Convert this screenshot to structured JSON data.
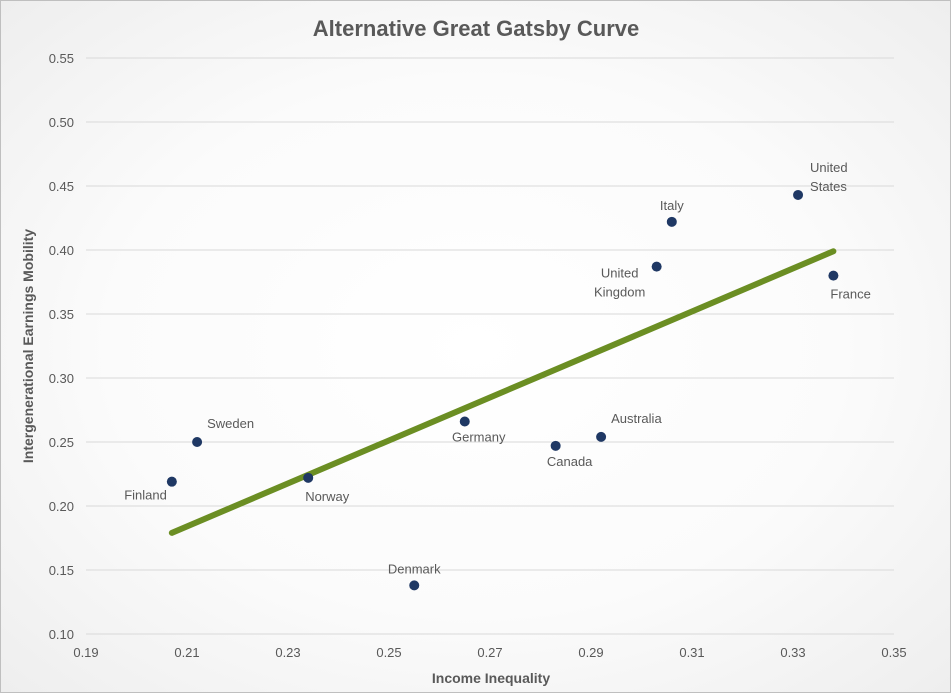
{
  "chart_data": {
    "type": "scatter",
    "title": "Alternative Great Gatsby Curve",
    "xlabel": "Income Inequality",
    "ylabel": "Intergenerational Earnings Mobility",
    "xlim": [
      0.19,
      0.35
    ],
    "ylim": [
      0.1,
      0.55
    ],
    "x_ticks": [
      "0.19",
      "0.21",
      "0.23",
      "0.25",
      "0.27",
      "0.29",
      "0.31",
      "0.33",
      "0.35"
    ],
    "y_ticks": [
      "0.10",
      "0.15",
      "0.20",
      "0.25",
      "0.30",
      "0.35",
      "0.40",
      "0.45",
      "0.50",
      "0.55"
    ],
    "grid": true,
    "legend": "none",
    "point_color": "#1f3864",
    "trend_color": "#6b8e23",
    "points": [
      {
        "label": [
          "Finland"
        ],
        "x": 0.207,
        "y": 0.219,
        "label_pos": "below-left"
      },
      {
        "label": [
          "Sweden"
        ],
        "x": 0.212,
        "y": 0.25,
        "label_pos": "above-right"
      },
      {
        "label": [
          "Norway"
        ],
        "x": 0.234,
        "y": 0.222,
        "label_pos": "below-right"
      },
      {
        "label": [
          "Denmark"
        ],
        "x": 0.255,
        "y": 0.138,
        "label_pos": "above"
      },
      {
        "label": [
          "Germany"
        ],
        "x": 0.265,
        "y": 0.266,
        "label_pos": "below"
      },
      {
        "label": [
          "Canada"
        ],
        "x": 0.283,
        "y": 0.247,
        "label_pos": "below"
      },
      {
        "label": [
          "Australia"
        ],
        "x": 0.292,
        "y": 0.254,
        "label_pos": "above-right"
      },
      {
        "label": [
          "United",
          "Kingdom"
        ],
        "x": 0.303,
        "y": 0.387,
        "label_pos": "left"
      },
      {
        "label": [
          "Italy"
        ],
        "x": 0.306,
        "y": 0.422,
        "label_pos": "above"
      },
      {
        "label": [
          "United",
          "States"
        ],
        "x": 0.331,
        "y": 0.443,
        "label_pos": "above-right"
      },
      {
        "label": [
          "France"
        ],
        "x": 0.338,
        "y": 0.38,
        "label_pos": "below-right"
      }
    ],
    "trendline": {
      "x": [
        0.207,
        0.338
      ],
      "y": [
        0.179,
        0.399
      ]
    }
  }
}
